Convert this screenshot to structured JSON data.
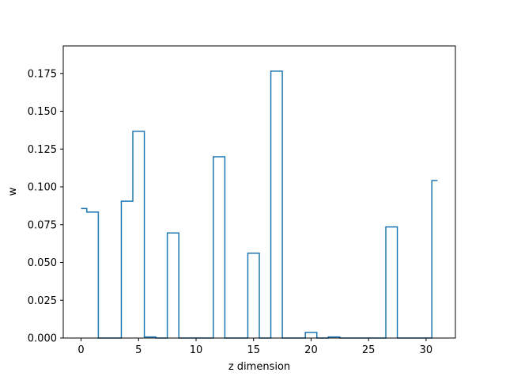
{
  "chart_data": {
    "type": "line",
    "style": "step",
    "title": "",
    "xlabel": "z dimension",
    "ylabel": "w",
    "xlim": [
      -1.55,
      32.55
    ],
    "ylim": [
      0.0,
      0.1932
    ],
    "xticks": [
      0,
      5,
      10,
      15,
      20,
      25,
      30
    ],
    "yticks": [
      0.0,
      0.025,
      0.05,
      0.075,
      0.1,
      0.125,
      0.15,
      0.175
    ],
    "ytick_labels": [
      "0.000",
      "0.025",
      "0.050",
      "0.075",
      "0.100",
      "0.125",
      "0.150",
      "0.175"
    ],
    "grid": false,
    "legend": "none",
    "color": "#1f77b4",
    "series": [
      {
        "x": [
          0,
          1,
          2,
          3,
          4,
          5,
          6,
          7,
          8,
          9,
          10,
          11,
          12,
          13,
          14,
          15,
          16,
          17,
          18,
          19,
          20,
          21,
          22,
          23,
          24,
          25,
          26,
          27,
          28,
          29,
          30,
          31
        ],
        "values": [
          0.0857,
          0.0833,
          0.0,
          0.0,
          0.0905,
          0.1367,
          0.0007,
          0.0,
          0.0695,
          0.0,
          0.0,
          0.0,
          0.1199,
          0.0,
          0.0,
          0.0561,
          0.0,
          0.1765,
          0.0,
          0.0,
          0.0037,
          0.0,
          0.0007,
          0.0,
          0.0,
          0.0,
          0.0,
          0.0735,
          0.0,
          0.0,
          0.0,
          0.1041
        ]
      }
    ]
  }
}
